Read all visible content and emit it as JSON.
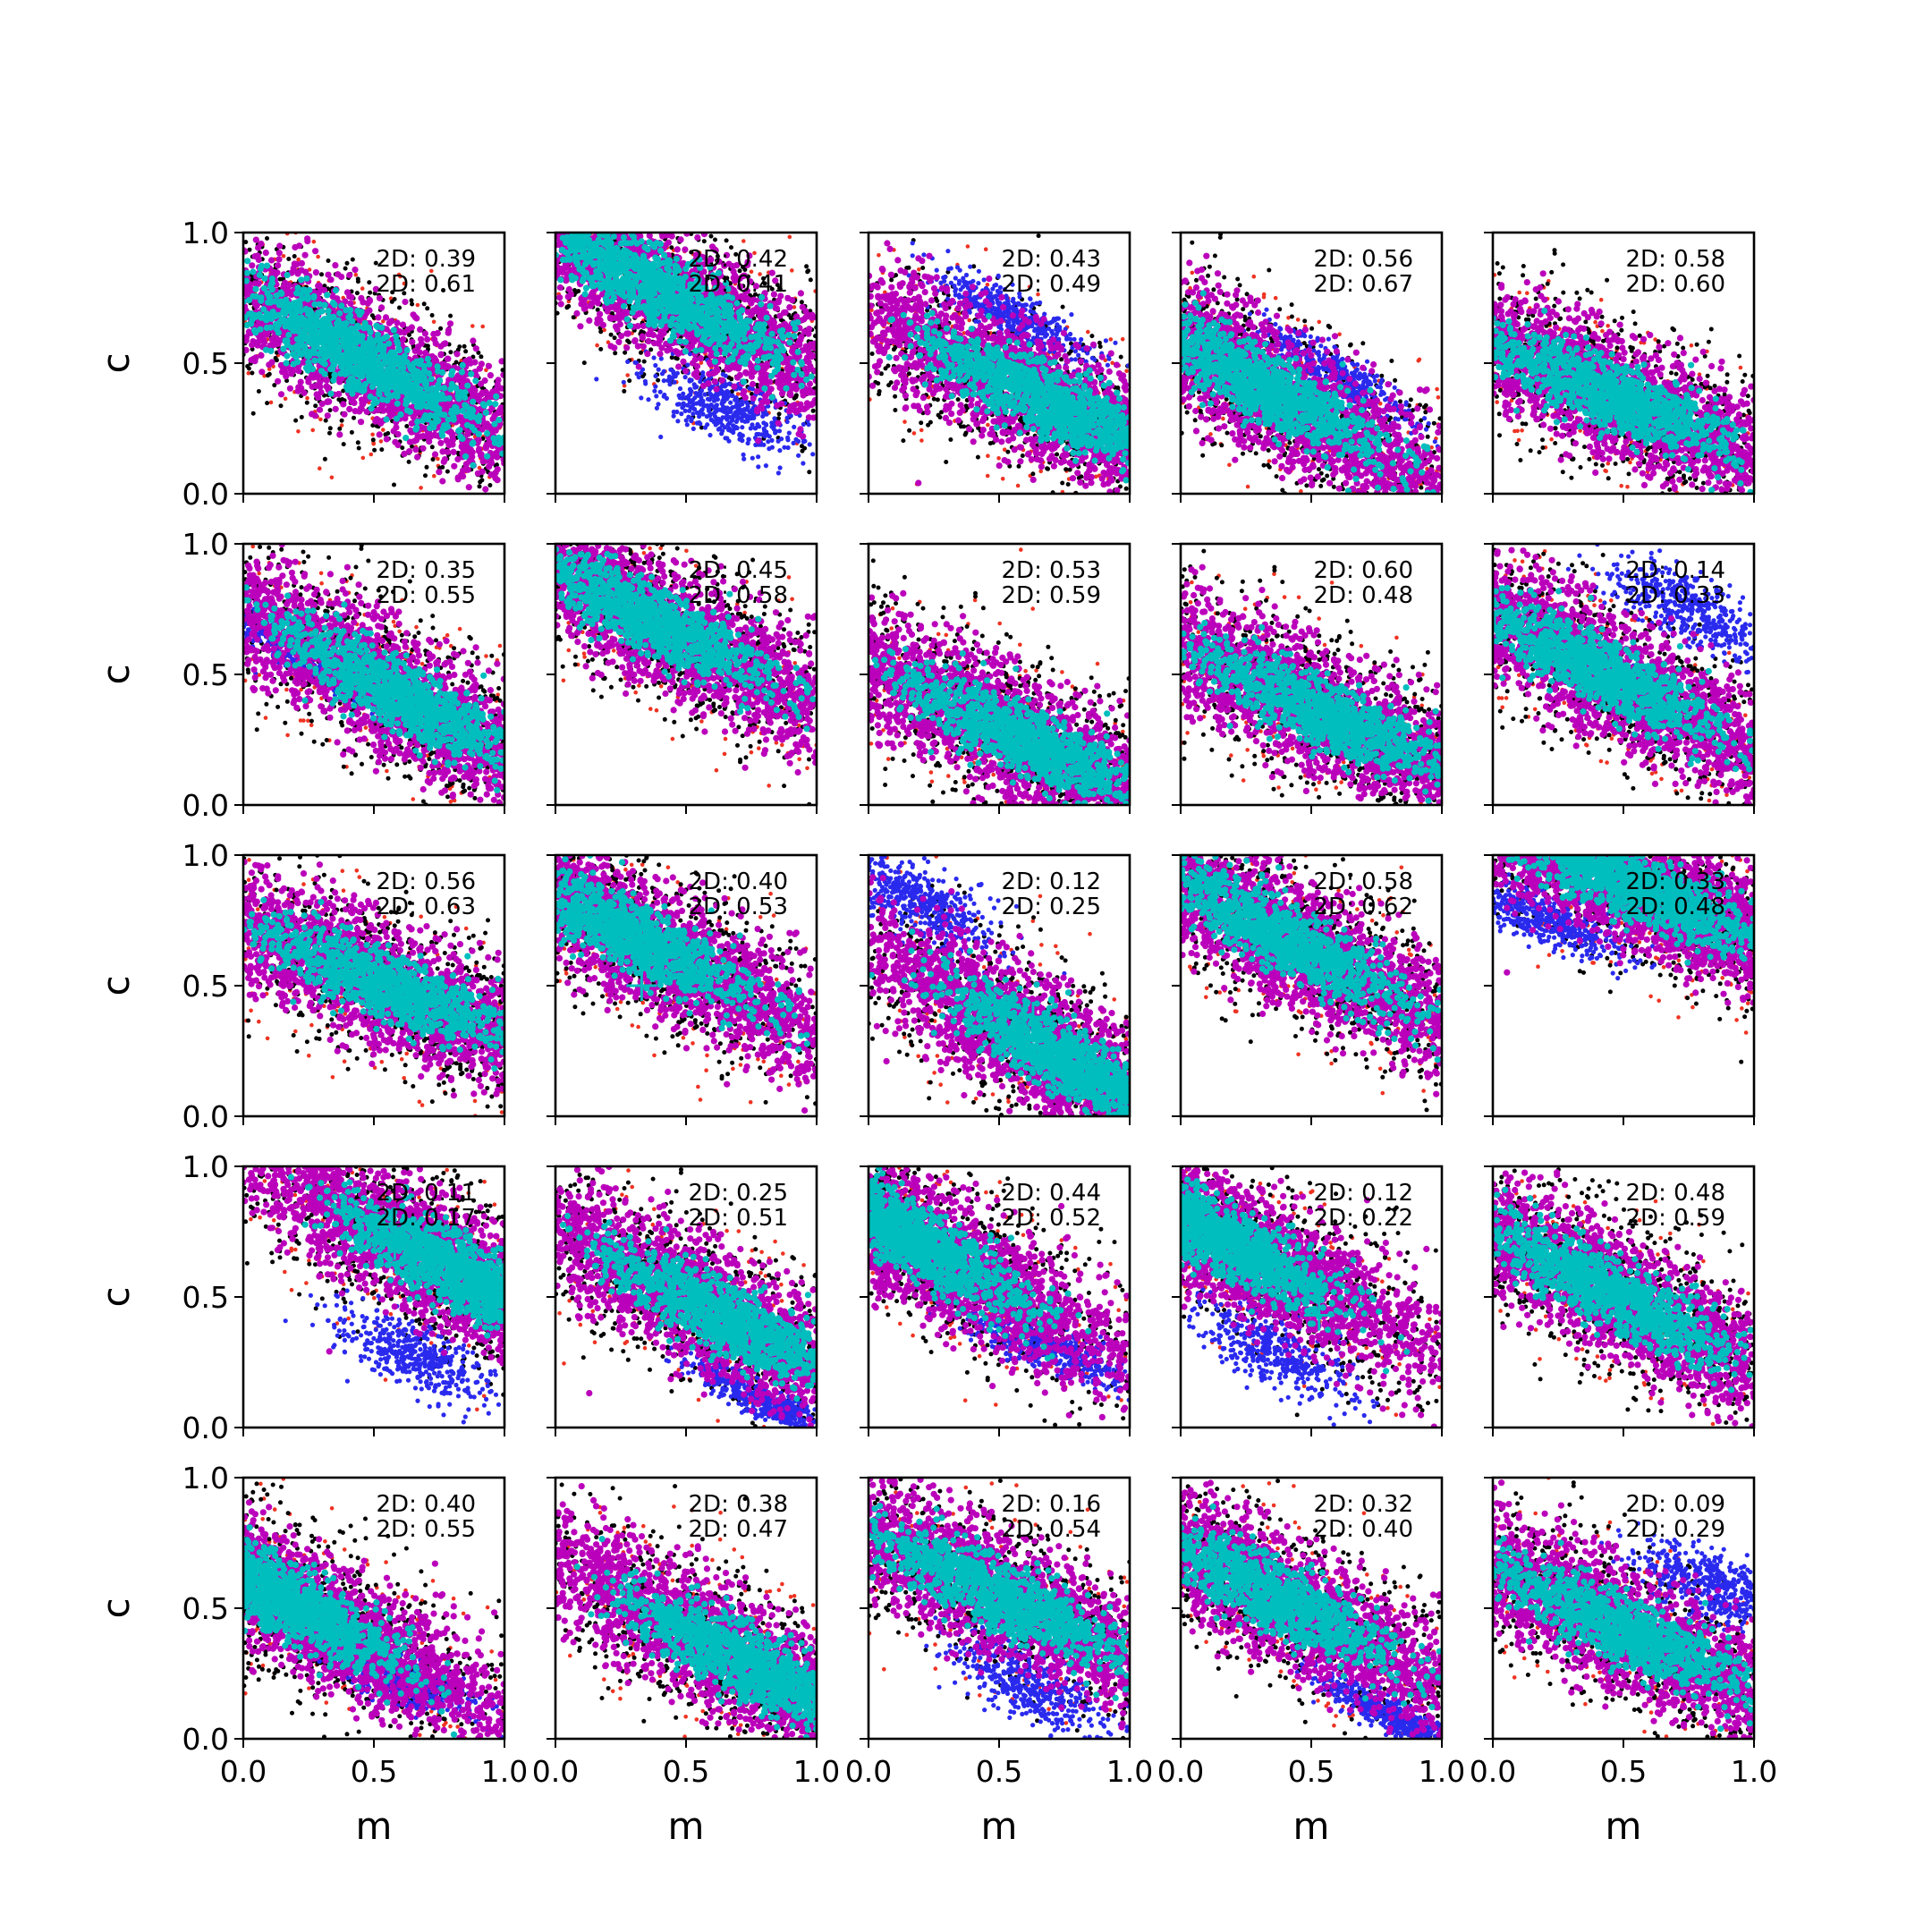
{
  "colors": {
    "outer": "#ee3322",
    "mid": "#000000",
    "blue": "#2a2aee",
    "magenta": "#bb00bb",
    "cyan": "#00bebe",
    "marker": "#00bebe"
  },
  "chart_data": {
    "type": "scatter",
    "grid": false,
    "rows": 5,
    "cols": 5,
    "xlabel": "m",
    "ylabel": "c",
    "xlim": [
      0,
      1
    ],
    "ylim": [
      0,
      1
    ],
    "xticks": [
      "0.0",
      "0.5",
      "1.0"
    ],
    "yticks": [
      "0.0",
      "0.5",
      "1.0"
    ],
    "panels": [
      {
        "labels": [
          "2D: 0.39",
          "2D: 0.61"
        ],
        "center": [
          0.45,
          0.52
        ],
        "slope": -0.55,
        "blue": null,
        "marker": null
      },
      {
        "labels": [
          "2D: 0.42",
          "2D: 0.41"
        ],
        "center": [
          0.4,
          0.78
        ],
        "slope": -0.55,
        "blue": {
          "center": [
            0.65,
            0.33
          ],
          "slope": -0.45,
          "spread": 0.06
        },
        "marker": null
      },
      {
        "labels": [
          "2D: 0.43",
          "2D: 0.49"
        ],
        "center": [
          0.7,
          0.35
        ],
        "slope": -0.5,
        "blue": {
          "center": [
            0.55,
            0.68
          ],
          "slope": -0.5,
          "spread": 0.04
        },
        "marker": null
      },
      {
        "labels": [
          "2D: 0.56",
          "2D: 0.67"
        ],
        "center": [
          0.3,
          0.42
        ],
        "slope": -0.6,
        "blue": {
          "center": [
            0.6,
            0.45
          ],
          "slope": -0.6,
          "spread": 0.04
        },
        "marker": null
      },
      {
        "labels": [
          "2D: 0.58",
          "2D: 0.60"
        ],
        "center": [
          0.45,
          0.38
        ],
        "slope": -0.45,
        "blue": null,
        "marker": null
      },
      {
        "labels": [
          "2D: 0.35",
          "2D: 0.55"
        ],
        "center": [
          0.6,
          0.42
        ],
        "slope": -0.6,
        "blue": {
          "center": [
            0.2,
            0.58
          ],
          "slope": -0.6,
          "spread": 0.03
        },
        "marker": null
      },
      {
        "labels": [
          "2D: 0.45",
          "2D: 0.58"
        ],
        "center": [
          0.35,
          0.72
        ],
        "slope": -0.55,
        "blue": null,
        "marker": null
      },
      {
        "labels": [
          "2D: 0.53",
          "2D: 0.59"
        ],
        "center": [
          0.6,
          0.25
        ],
        "slope": -0.5,
        "blue": null,
        "marker": null
      },
      {
        "labels": [
          "2D: 0.60",
          "2D: 0.48"
        ],
        "center": [
          0.55,
          0.35
        ],
        "slope": -0.5,
        "blue": null,
        "marker": null
      },
      {
        "labels": [
          "2D: 0.14",
          "2D: 0.33"
        ],
        "center": [
          0.4,
          0.52
        ],
        "slope": -0.55,
        "blue": {
          "center": [
            0.75,
            0.75
          ],
          "slope": -0.5,
          "spread": 0.06
        },
        "marker": null
      },
      {
        "labels": [
          "2D: 0.56",
          "2D: 0.63"
        ],
        "center": [
          0.55,
          0.5
        ],
        "slope": -0.45,
        "blue": null,
        "marker": null
      },
      {
        "labels": [
          "2D: 0.40",
          "2D: 0.53"
        ],
        "center": [
          0.28,
          0.7
        ],
        "slope": -0.55,
        "blue": null,
        "marker": [
          0.33,
          0.5
        ]
      },
      {
        "labels": [
          "2D: 0.12",
          "2D: 0.25"
        ],
        "center": [
          0.78,
          0.2
        ],
        "slope": -0.6,
        "blue": {
          "center": [
            0.2,
            0.82
          ],
          "slope": -0.6,
          "spread": 0.06
        },
        "marker": [
          0.63,
          0.38
        ]
      },
      {
        "labels": [
          "2D: 0.58",
          "2D: 0.62"
        ],
        "center": [
          0.4,
          0.68
        ],
        "slope": -0.55,
        "blue": null,
        "marker": null
      },
      {
        "labels": [
          "2D: 0.33",
          "2D: 0.48"
        ],
        "center": [
          0.55,
          0.88
        ],
        "slope": -0.45,
        "blue": {
          "center": [
            0.2,
            0.75
          ],
          "slope": -0.4,
          "spread": 0.04
        },
        "marker": null
      },
      {
        "labels": [
          "2D: 0.11",
          "2D: 0.17"
        ],
        "center": [
          0.85,
          0.58
        ],
        "slope": -0.55,
        "blue": {
          "center": [
            0.65,
            0.28
          ],
          "slope": -0.5,
          "spread": 0.06
        },
        "marker": [
          0.58,
          0.7
        ]
      },
      {
        "labels": [
          "2D: 0.25",
          "2D: 0.51"
        ],
        "center": [
          0.65,
          0.42
        ],
        "slope": -0.55,
        "blue": {
          "center": [
            0.8,
            0.1
          ],
          "slope": -0.5,
          "spread": 0.03
        },
        "marker": null
      },
      {
        "labels": [
          "2D: 0.44",
          "2D: 0.52"
        ],
        "center": [
          0.12,
          0.75
        ],
        "slope": -0.6,
        "blue": {
          "center": [
            0.7,
            0.3
          ],
          "slope": -0.4,
          "spread": 0.04
        },
        "marker": [
          0.28,
          0.57
        ]
      },
      {
        "labels": [
          "2D: 0.12",
          "2D: 0.22"
        ],
        "center": [
          0.1,
          0.75
        ],
        "slope": -0.55,
        "blue": {
          "center": [
            0.35,
            0.3
          ],
          "slope": -0.5,
          "spread": 0.06
        },
        "marker": [
          0.53,
          0.43
        ]
      },
      {
        "labels": [
          "2D: 0.48",
          "2D: 0.59"
        ],
        "center": [
          0.45,
          0.52
        ],
        "slope": -0.55,
        "blue": null,
        "marker": null
      },
      {
        "labels": [
          "2D: 0.40",
          "2D: 0.55"
        ],
        "center": [
          0.12,
          0.55
        ],
        "slope": -0.55,
        "blue": {
          "center": [
            0.6,
            0.22
          ],
          "slope": -0.4,
          "spread": 0.04
        },
        "marker": [
          0.48,
          0.37
        ]
      },
      {
        "labels": [
          "2D: 0.38",
          "2D: 0.47"
        ],
        "center": [
          0.75,
          0.28
        ],
        "slope": -0.55,
        "blue": null,
        "marker": [
          0.4,
          0.47
        ]
      },
      {
        "labels": [
          "2D: 0.16",
          "2D: 0.54"
        ],
        "center": [
          0.5,
          0.55
        ],
        "slope": -0.5,
        "blue": {
          "center": [
            0.62,
            0.2
          ],
          "slope": -0.55,
          "spread": 0.06
        },
        "marker": null
      },
      {
        "labels": [
          "2D: 0.32",
          "2D: 0.40"
        ],
        "center": [
          0.35,
          0.55
        ],
        "slope": -0.55,
        "blue": {
          "center": [
            0.82,
            0.08
          ],
          "slope": -0.5,
          "spread": 0.03
        },
        "marker": null
      },
      {
        "labels": [
          "2D: 0.09",
          "2D: 0.29"
        ],
        "center": [
          0.5,
          0.42
        ],
        "slope": -0.5,
        "blue": {
          "center": [
            0.85,
            0.58
          ],
          "slope": -0.4,
          "spread": 0.06
        },
        "marker": null
      }
    ]
  }
}
